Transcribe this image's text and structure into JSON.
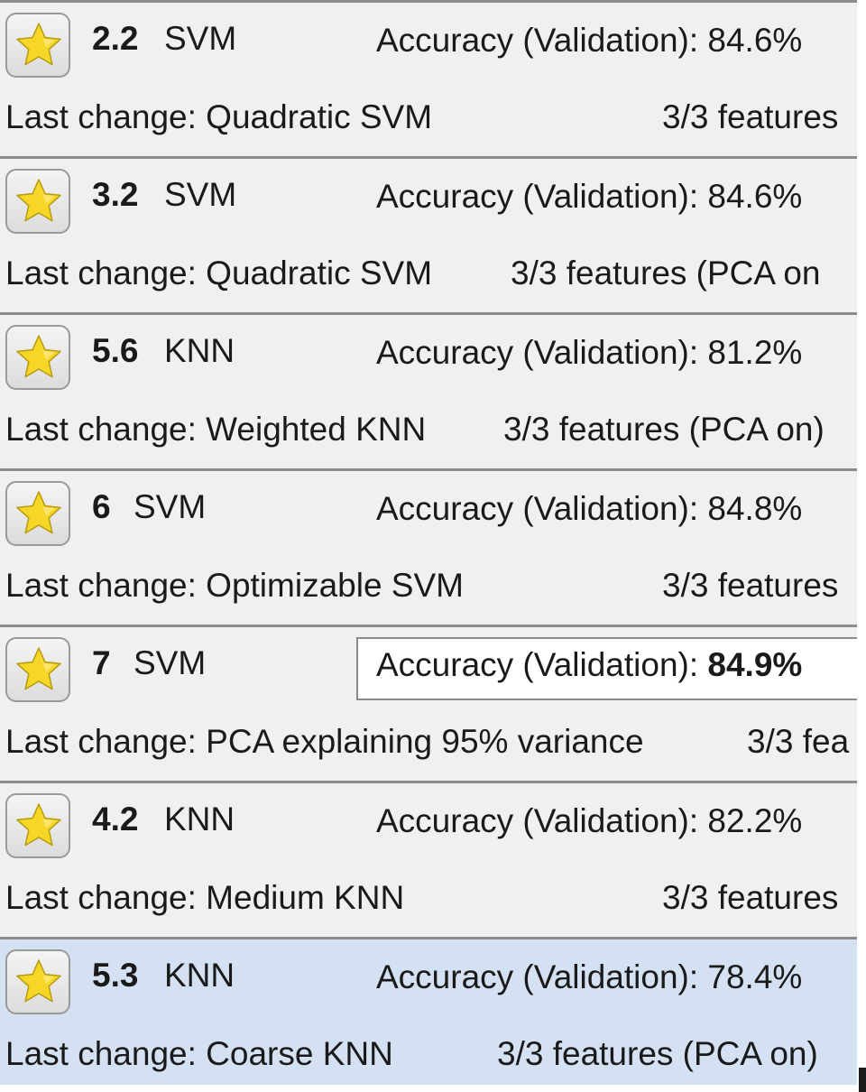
{
  "colors": {
    "row_background": "#f0f0f0",
    "selected_row_background": "#d4e1f3",
    "separator": "#8c8c8c",
    "star_fill": "#f6d626"
  },
  "models": [
    {
      "number": "2.2",
      "type": "SVM",
      "accuracy_label": "Accuracy (Validation):",
      "accuracy_value": "84.6%",
      "last_change_label": "Last change:",
      "last_change": "Quadratic SVM",
      "features": "3/3 features",
      "favorite_icon": "star-icon",
      "selected": false,
      "current": false
    },
    {
      "number": "3.2",
      "type": "SVM",
      "accuracy_label": "Accuracy (Validation):",
      "accuracy_value": "84.6%",
      "last_change_label": "Last change:",
      "last_change": "Quadratic SVM",
      "features": "3/3 features (PCA on",
      "favorite_icon": "star-icon",
      "selected": false,
      "current": false
    },
    {
      "number": "5.6",
      "type": "KNN",
      "accuracy_label": "Accuracy (Validation):",
      "accuracy_value": "81.2%",
      "last_change_label": "Last change:",
      "last_change": "Weighted KNN",
      "features": "3/3 features (PCA on)",
      "favorite_icon": "star-icon",
      "selected": false,
      "current": false
    },
    {
      "number": "6",
      "type": "SVM",
      "accuracy_label": "Accuracy (Validation):",
      "accuracy_value": "84.8%",
      "last_change_label": "Last change:",
      "last_change": "Optimizable SVM",
      "features": "3/3 features",
      "favorite_icon": "star-icon",
      "selected": false,
      "current": false
    },
    {
      "number": "7",
      "type": "SVM",
      "accuracy_label": "Accuracy (Validation):",
      "accuracy_value": "84.9%",
      "last_change_label": "Last change:",
      "last_change": "PCA explaining 95% variance",
      "features": "3/3 fea",
      "favorite_icon": "star-icon",
      "selected": false,
      "current": true
    },
    {
      "number": "4.2",
      "type": "KNN",
      "accuracy_label": "Accuracy (Validation):",
      "accuracy_value": "82.2%",
      "last_change_label": "Last change:",
      "last_change": "Medium KNN",
      "features": "3/3 features",
      "favorite_icon": "star-icon",
      "selected": false,
      "current": false
    },
    {
      "number": "5.3",
      "type": "KNN",
      "accuracy_label": "Accuracy (Validation):",
      "accuracy_value": "78.4%",
      "last_change_label": "Last change:",
      "last_change": "Coarse KNN",
      "features": "3/3 features (PCA on)",
      "favorite_icon": "star-icon",
      "selected": true,
      "current": false
    }
  ]
}
